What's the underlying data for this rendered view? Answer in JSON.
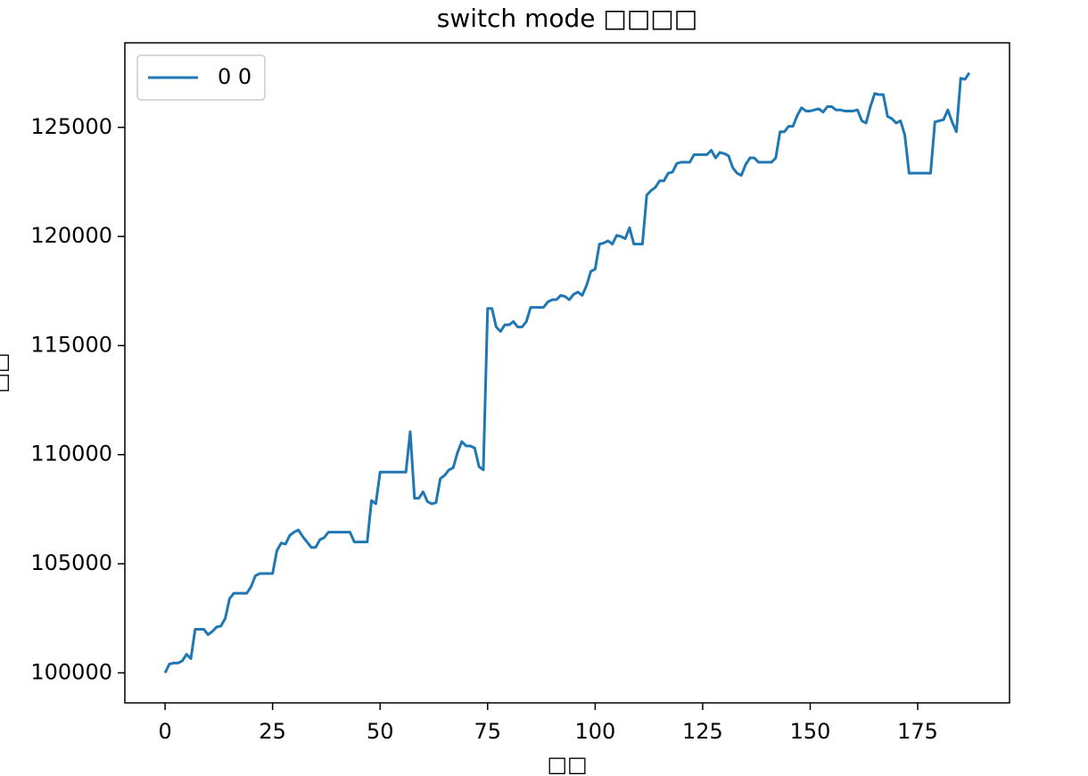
{
  "chart_data": {
    "type": "line",
    "title": "switch mode □□□□",
    "xlabel": "□□",
    "ylabel": "□□",
    "x": [
      0,
      1,
      2,
      3,
      4,
      5,
      6,
      7,
      8,
      9,
      10,
      11,
      12,
      13,
      14,
      15,
      16,
      17,
      18,
      19,
      20,
      21,
      22,
      23,
      24,
      25,
      26,
      27,
      28,
      29,
      30,
      31,
      32,
      33,
      34,
      35,
      36,
      37,
      38,
      39,
      40,
      41,
      42,
      43,
      44,
      45,
      46,
      47,
      48,
      49,
      50,
      51,
      52,
      53,
      54,
      55,
      56,
      57,
      58,
      59,
      60,
      61,
      62,
      63,
      64,
      65,
      66,
      67,
      68,
      69,
      70,
      71,
      72,
      73,
      74,
      75,
      76,
      77,
      78,
      79,
      80,
      81,
      82,
      83,
      84,
      85,
      86,
      87,
      88,
      89,
      90,
      91,
      92,
      93,
      94,
      95,
      96,
      97,
      98,
      99,
      100,
      101,
      102,
      103,
      104,
      105,
      106,
      107,
      108,
      109,
      110,
      111,
      112,
      113,
      114,
      115,
      116,
      117,
      118,
      119,
      120,
      121,
      122,
      123,
      124,
      125,
      126,
      127,
      128,
      129,
      130,
      131,
      132,
      133,
      134,
      135,
      136,
      137,
      138,
      139,
      140,
      141,
      142,
      143,
      144,
      145,
      146,
      147,
      148,
      149,
      150,
      151,
      152,
      153,
      154,
      155,
      156,
      157,
      158,
      159,
      160,
      161,
      162,
      163,
      164,
      165,
      166,
      167,
      168,
      169,
      170,
      171,
      172,
      173,
      174,
      175,
      176,
      177,
      178,
      179,
      180,
      181,
      182,
      183,
      184,
      185,
      186,
      187
    ],
    "series": [
      {
        "name": "0 0",
        "color": "#1f77b4",
        "values": [
          100000,
          100400,
          100450,
          100450,
          100550,
          100850,
          100650,
          102000,
          102000,
          102000,
          101750,
          101900,
          102100,
          102150,
          102500,
          103400,
          103650,
          103650,
          103650,
          103650,
          103950,
          104450,
          104550,
          104550,
          104550,
          104550,
          105600,
          105950,
          105900,
          106300,
          106450,
          106550,
          106250,
          106000,
          105750,
          105750,
          106100,
          106200,
          106450,
          106450,
          106450,
          106450,
          106450,
          106450,
          106000,
          106000,
          106000,
          106000,
          107900,
          107750,
          109200,
          109200,
          109200,
          109200,
          109200,
          109200,
          109200,
          111050,
          108000,
          108000,
          108300,
          107850,
          107750,
          107800,
          108900,
          109050,
          109300,
          109400,
          110100,
          110600,
          110400,
          110400,
          110300,
          109450,
          109300,
          116700,
          116700,
          115850,
          115650,
          115950,
          115950,
          116100,
          115850,
          115850,
          116100,
          116750,
          116750,
          116750,
          116750,
          117000,
          117100,
          117100,
          117300,
          117250,
          117100,
          117350,
          117450,
          117300,
          117750,
          118400,
          118500,
          119650,
          119700,
          119800,
          119650,
          120050,
          120000,
          119900,
          120400,
          119650,
          119650,
          119650,
          121900,
          122100,
          122250,
          122550,
          122550,
          122900,
          122950,
          123350,
          123400,
          123400,
          123400,
          123750,
          123750,
          123750,
          123750,
          123950,
          123600,
          123850,
          123800,
          123700,
          123150,
          122900,
          122800,
          123300,
          123600,
          123600,
          123400,
          123400,
          123400,
          123400,
          123600,
          124800,
          124800,
          125050,
          125050,
          125550,
          125900,
          125750,
          125750,
          125800,
          125850,
          125700,
          125950,
          125950,
          125800,
          125800,
          125750,
          125750,
          125750,
          125800,
          125300,
          125200,
          125950,
          126550,
          126500,
          126500,
          125500,
          125400,
          125200,
          125300,
          124650,
          122900,
          122900,
          122900,
          122900,
          122900,
          122900,
          125250,
          125300,
          125350,
          125800,
          125250,
          124800,
          127250,
          127200,
          127500
        ]
      }
    ],
    "xlim": [
      -9.35,
      196.35
    ],
    "ylim": [
      98625,
      128875
    ],
    "xticks": [
      0,
      25,
      50,
      75,
      100,
      125,
      150,
      175
    ],
    "yticks": [
      100000,
      105000,
      110000,
      115000,
      120000,
      125000
    ],
    "legend": "upper left"
  }
}
